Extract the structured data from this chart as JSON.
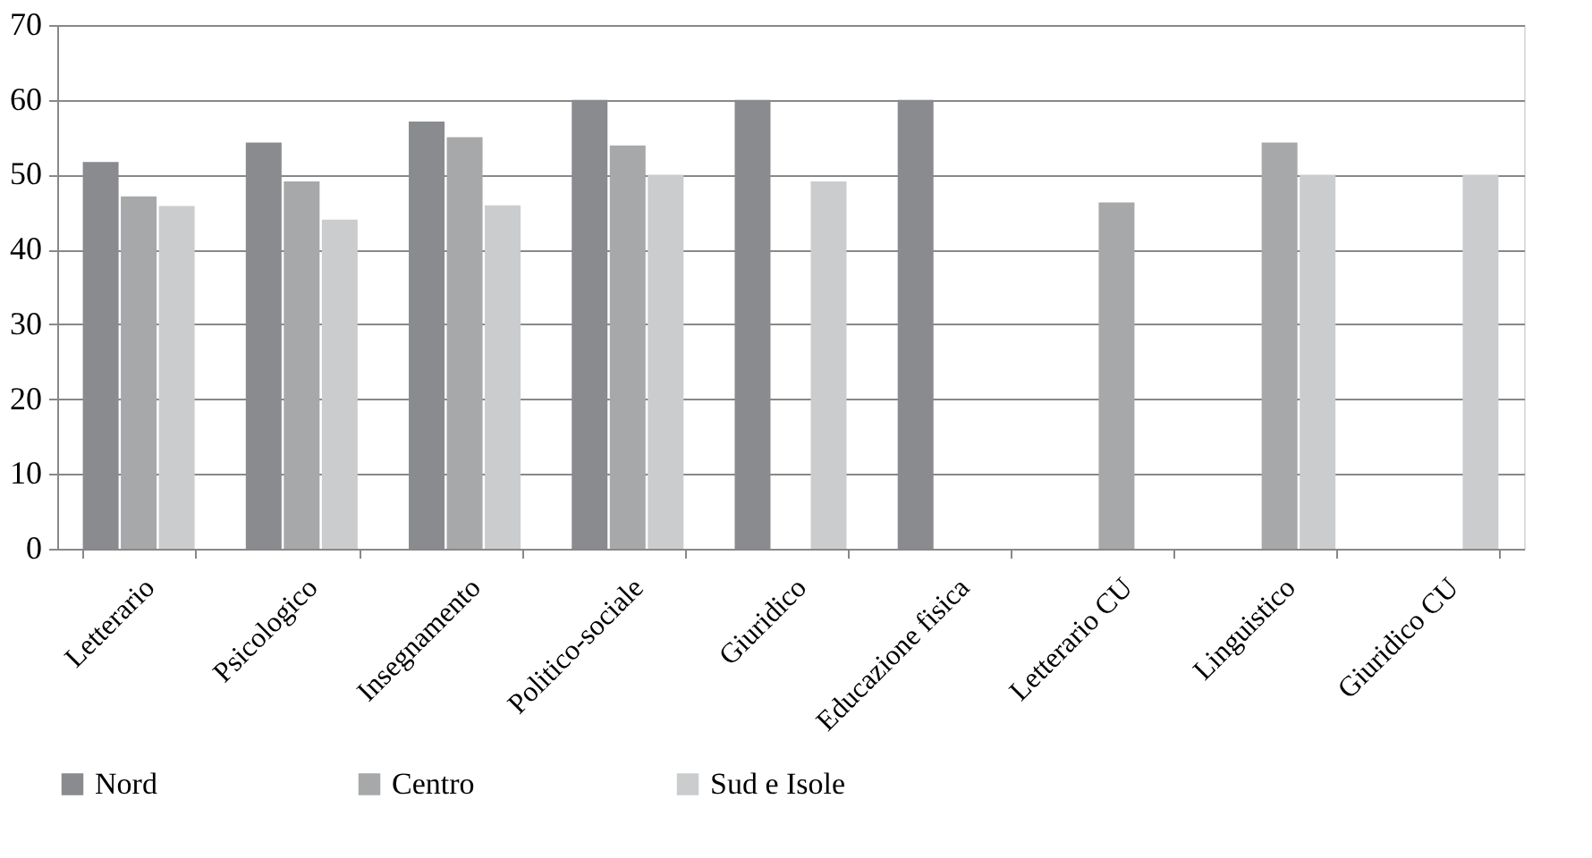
{
  "chart_data": {
    "type": "bar",
    "categories": [
      "Letterario",
      "Psicologico",
      "Insegnamento",
      "Politico-sociale",
      "Giuridico",
      "Educazione fisica",
      "Letterario CU",
      "Linguistico",
      "Giuridico CU"
    ],
    "series": [
      {
        "name": "Nord",
        "color": "#8a8b8f",
        "values": [
          51.7,
          54.3,
          57.1,
          60,
          60,
          60,
          null,
          null,
          null
        ]
      },
      {
        "name": "Centro",
        "color": "#a7a8aa",
        "values": [
          47.1,
          49.1,
          55,
          53.9,
          null,
          null,
          46.3,
          54.3,
          null
        ]
      },
      {
        "name": "Sud e Isole",
        "color": "#cbcccd",
        "values": [
          45.8,
          44,
          45.9,
          50,
          49.1,
          null,
          null,
          50,
          50
        ]
      }
    ],
    "ylim": [
      0,
      70
    ],
    "yticks": [
      0,
      10,
      20,
      30,
      40,
      50,
      60,
      70
    ],
    "grid": "y",
    "legend": "bottom"
  }
}
